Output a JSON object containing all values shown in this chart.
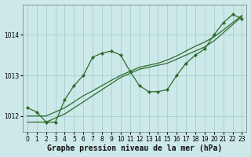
{
  "title": "Graphe pression niveau de la mer (hPa)",
  "bg_color": "#cce8e8",
  "grid_color": "#99cccc",
  "line_color": "#2d6b2d",
  "marker_color": "#2d6b2d",
  "ylim": [
    1011.6,
    1014.75
  ],
  "xlim": [
    -0.5,
    23.5
  ],
  "yticks": [
    1012,
    1013,
    1014
  ],
  "xticks": [
    0,
    1,
    2,
    3,
    4,
    5,
    6,
    7,
    8,
    9,
    10,
    11,
    12,
    13,
    14,
    15,
    16,
    17,
    18,
    19,
    20,
    21,
    22,
    23
  ],
  "tick_fontsize": 5.5,
  "xlabel_fontsize": 7.0,
  "series1_x": [
    0,
    1,
    2,
    3,
    4,
    5,
    6,
    7,
    8,
    9,
    10,
    11,
    12,
    13,
    14,
    15,
    16,
    17,
    18,
    19,
    20,
    21,
    22,
    23
  ],
  "series1_y": [
    1012.2,
    1012.1,
    1011.85,
    1011.85,
    1012.4,
    1012.75,
    1013.0,
    1013.45,
    1013.55,
    1013.6,
    1013.5,
    1013.1,
    1012.75,
    1012.6,
    1012.6,
    1012.65,
    1013.0,
    1013.3,
    1013.5,
    1013.65,
    1014.0,
    1014.3,
    1014.5,
    1014.4
  ],
  "series2_x": [
    0,
    1,
    2,
    3,
    4,
    5,
    6,
    7,
    8,
    9,
    10,
    11,
    12,
    13,
    14,
    15,
    16,
    17,
    18,
    19,
    20,
    21,
    22,
    23
  ],
  "series2_y": [
    1011.85,
    1011.85,
    1011.85,
    1011.95,
    1012.05,
    1012.2,
    1012.35,
    1012.5,
    1012.65,
    1012.8,
    1012.95,
    1013.05,
    1013.15,
    1013.2,
    1013.25,
    1013.3,
    1013.4,
    1013.5,
    1013.6,
    1013.7,
    1013.85,
    1014.05,
    1014.25,
    1014.45
  ],
  "series3_x": [
    0,
    1,
    2,
    3,
    4,
    5,
    6,
    7,
    8,
    9,
    10,
    11,
    12,
    13,
    14,
    15,
    16,
    17,
    18,
    19,
    20,
    21,
    22,
    23
  ],
  "series3_y": [
    1012.0,
    1012.0,
    1012.0,
    1012.1,
    1012.2,
    1012.35,
    1012.5,
    1012.62,
    1012.75,
    1012.88,
    1013.0,
    1013.1,
    1013.2,
    1013.25,
    1013.3,
    1013.38,
    1013.48,
    1013.6,
    1013.72,
    1013.82,
    1013.95,
    1014.12,
    1014.3,
    1014.48
  ]
}
